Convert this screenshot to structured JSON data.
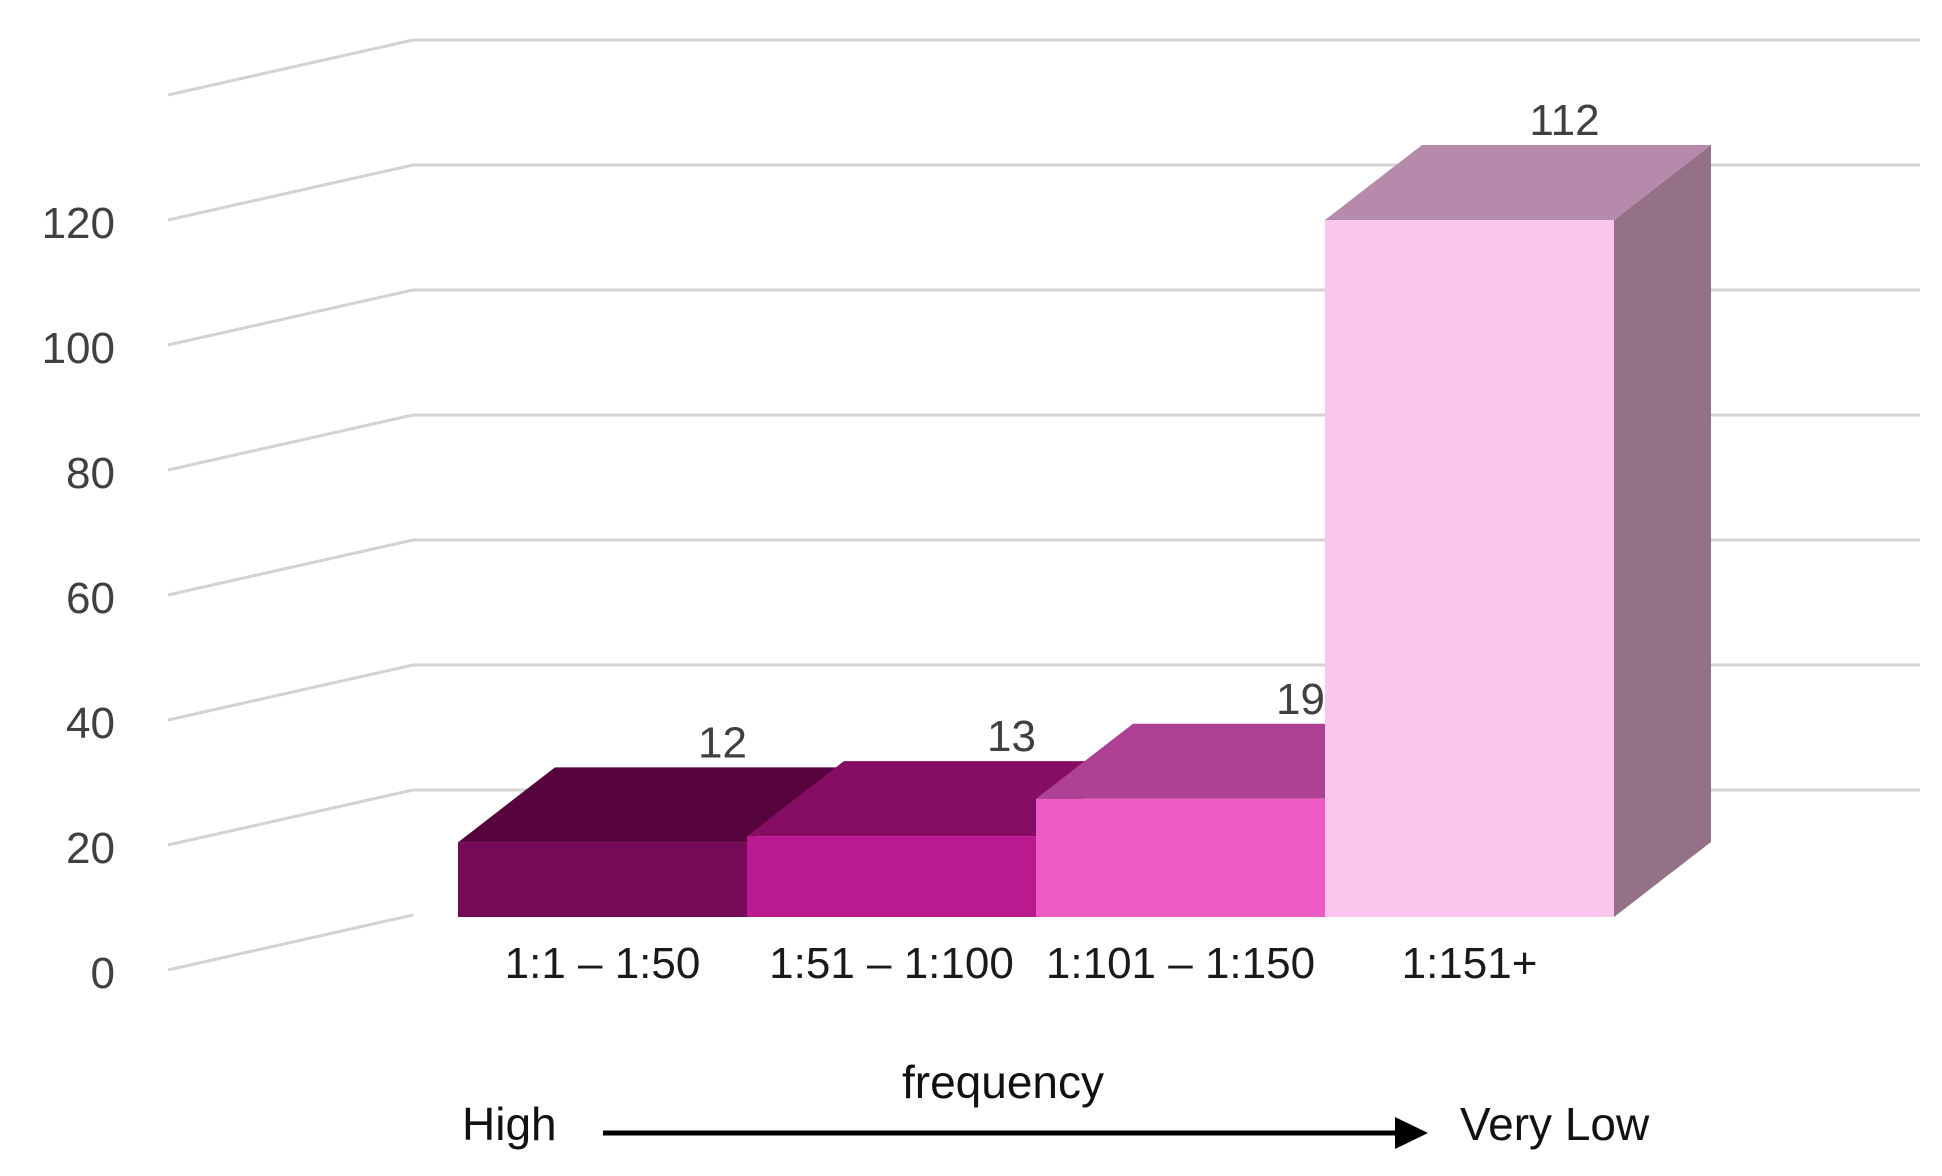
{
  "chart_data": {
    "type": "bar",
    "style": "3d-column",
    "categories": [
      "1:1 – 1:50",
      "1:51 – 1:100",
      "1:101 – 1:150",
      "1:151+"
    ],
    "values": [
      12,
      13,
      19,
      112
    ],
    "data_labels": [
      "12",
      "13",
      "19",
      "112"
    ],
    "colors": [
      "#750A59",
      "#BB198F",
      "#EE5BC5",
      "#FBC6EC"
    ],
    "ylim": [
      0,
      140
    ],
    "yticks": [
      "0",
      "20",
      "40",
      "60",
      "80",
      "100",
      "120"
    ],
    "grid": true,
    "xaxis_caption": {
      "left": "High",
      "center": "frequency",
      "right": "Very Low"
    }
  }
}
